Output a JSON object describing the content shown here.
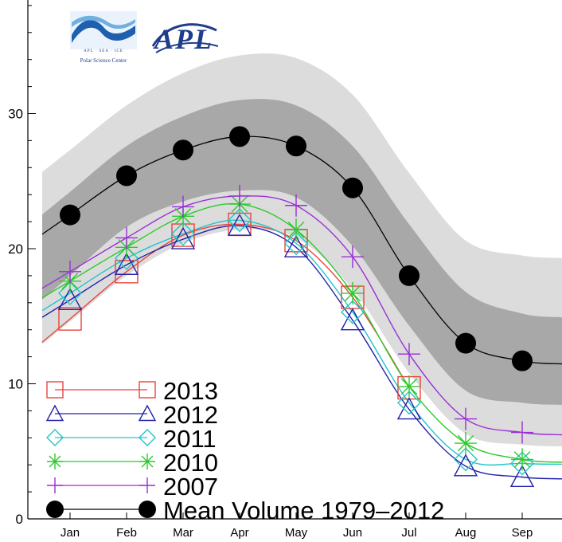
{
  "colors": {
    "band_outer": "#dcdcdc",
    "band_inner": "#a8a8a8",
    "axis": "#000000"
  },
  "logos": {
    "psc": {
      "letters": "APL · SEA · ICE",
      "name": "Polar Science Center"
    },
    "apl": {
      "letters": "APL"
    }
  },
  "chart_data": {
    "type": "line",
    "categories": [
      "Jan",
      "Feb",
      "Mar",
      "Apr",
      "May",
      "Jun",
      "Jul",
      "Aug",
      "Sep"
    ],
    "ylim": [
      0,
      38
    ],
    "yticks": [
      0,
      10,
      20,
      30
    ],
    "grid": false,
    "legend_position": "bottom-left",
    "bands": {
      "outer_upper": [
        27.3,
        30.6,
        33.0,
        34.3,
        34.1,
        31.4,
        25.6,
        20.6,
        19.5
      ],
      "inner_upper": [
        24.2,
        27.6,
        29.8,
        31.0,
        30.6,
        27.6,
        21.8,
        16.8,
        15.2
      ],
      "inner_lower": [
        18.0,
        21.6,
        23.5,
        24.3,
        23.8,
        20.2,
        14.3,
        9.5,
        8.6
      ],
      "outer_lower": [
        14.6,
        18.0,
        20.4,
        21.4,
        20.8,
        17.0,
        10.8,
        6.3,
        5.5
      ]
    },
    "series": [
      {
        "name": "2013",
        "color": "#e8453c",
        "marker": "square",
        "values": [
          14.8,
          18.3,
          21.0,
          21.8,
          20.6,
          16.4,
          9.7,
          null,
          null
        ]
      },
      {
        "name": "2012",
        "color": "#2222aa",
        "marker": "triangle",
        "values": [
          16.2,
          18.8,
          20.7,
          21.7,
          20.1,
          14.7,
          8.1,
          3.9,
          3.1
        ]
      },
      {
        "name": "2011",
        "color": "#22c5c8",
        "marker": "diamond",
        "values": [
          16.7,
          19.3,
          21.1,
          22.1,
          20.4,
          15.3,
          8.6,
          4.4,
          4.1
        ]
      },
      {
        "name": "2010",
        "color": "#2ec92e",
        "marker": "asterisk",
        "values": [
          17.6,
          20.1,
          22.4,
          23.3,
          21.4,
          16.7,
          9.8,
          5.6,
          4.4
        ]
      },
      {
        "name": "2007",
        "color": "#9b2fd6",
        "marker": "plus",
        "values": [
          18.3,
          20.8,
          23.1,
          23.9,
          23.2,
          19.4,
          12.2,
          7.4,
          6.4
        ]
      },
      {
        "name": "Mean Volume 1979–2012",
        "color": "#000000",
        "marker": "dot",
        "values": [
          22.5,
          25.4,
          27.3,
          28.3,
          27.6,
          24.5,
          18.0,
          13.0,
          11.7
        ]
      }
    ]
  }
}
